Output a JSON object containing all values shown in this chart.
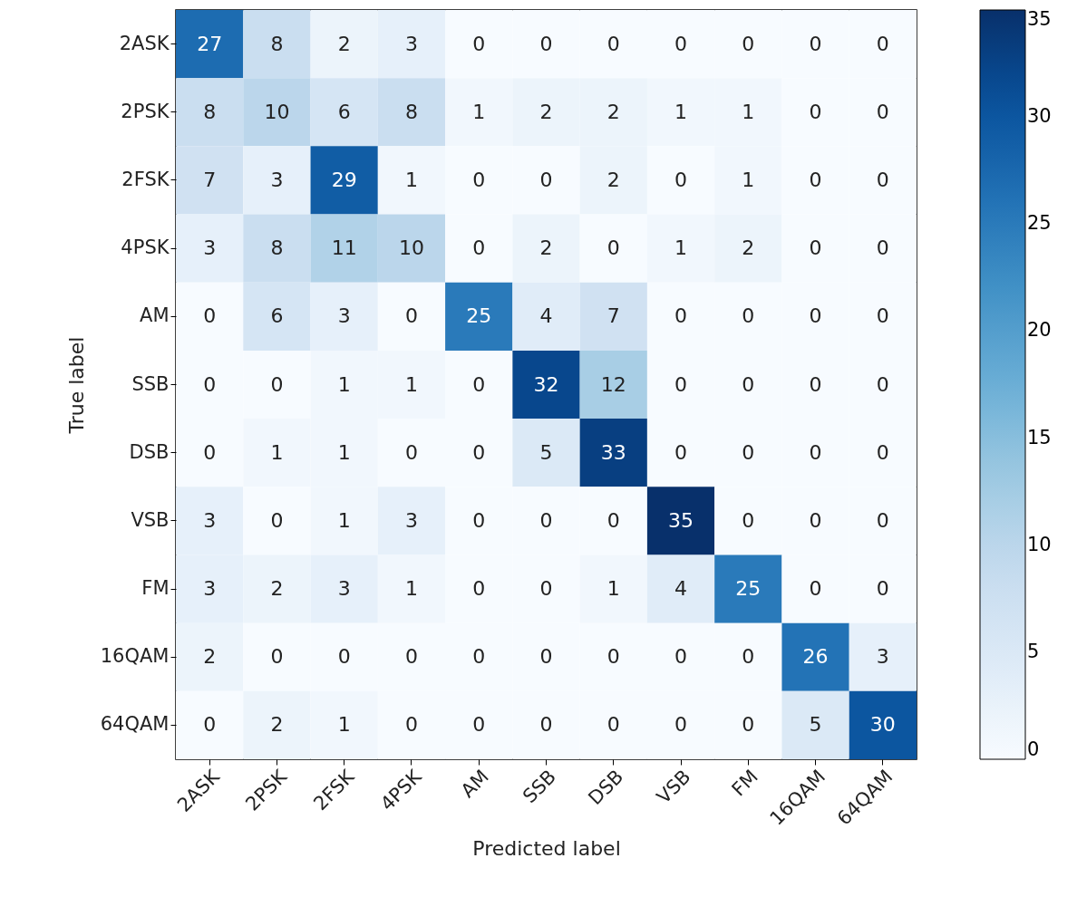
{
  "chart_data": {
    "type": "heatmap",
    "xlabel": "Predicted label",
    "ylabel": "True label",
    "categories": [
      "2ASK",
      "2PSK",
      "2FSK",
      "4PSK",
      "AM",
      "SSB",
      "DSB",
      "VSB",
      "FM",
      "16QAM",
      "64QAM"
    ],
    "y_categories": [
      "2ASK",
      "2PSK",
      "2FSK",
      "4PSK",
      "AM",
      "SSB",
      "DSB",
      "VSB",
      "FM",
      "16QAM",
      "64QAM"
    ],
    "cells": [
      [
        27,
        8,
        2,
        3,
        0,
        0,
        0,
        0,
        0,
        0,
        0
      ],
      [
        8,
        10,
        6,
        8,
        1,
        2,
        2,
        1,
        1,
        0,
        0
      ],
      [
        7,
        3,
        29,
        1,
        0,
        0,
        2,
        0,
        1,
        0,
        0
      ],
      [
        3,
        8,
        11,
        10,
        0,
        2,
        0,
        1,
        2,
        0,
        0
      ],
      [
        0,
        6,
        3,
        0,
        25,
        4,
        7,
        0,
        0,
        0,
        0
      ],
      [
        0,
        0,
        1,
        1,
        0,
        32,
        12,
        0,
        0,
        0,
        0
      ],
      [
        0,
        1,
        1,
        0,
        0,
        5,
        33,
        0,
        0,
        0,
        0
      ],
      [
        3,
        0,
        1,
        3,
        0,
        0,
        0,
        35,
        0,
        0,
        0
      ],
      [
        3,
        2,
        3,
        1,
        0,
        0,
        1,
        4,
        25,
        0,
        0
      ],
      [
        2,
        0,
        0,
        0,
        0,
        0,
        0,
        0,
        0,
        26,
        3
      ],
      [
        0,
        2,
        1,
        0,
        0,
        0,
        0,
        0,
        0,
        5,
        30
      ]
    ],
    "clim": [
      0,
      35
    ],
    "cticks": [
      0,
      5,
      10,
      15,
      20,
      25,
      30,
      35
    ],
    "data_labels": true,
    "grid": false
  }
}
